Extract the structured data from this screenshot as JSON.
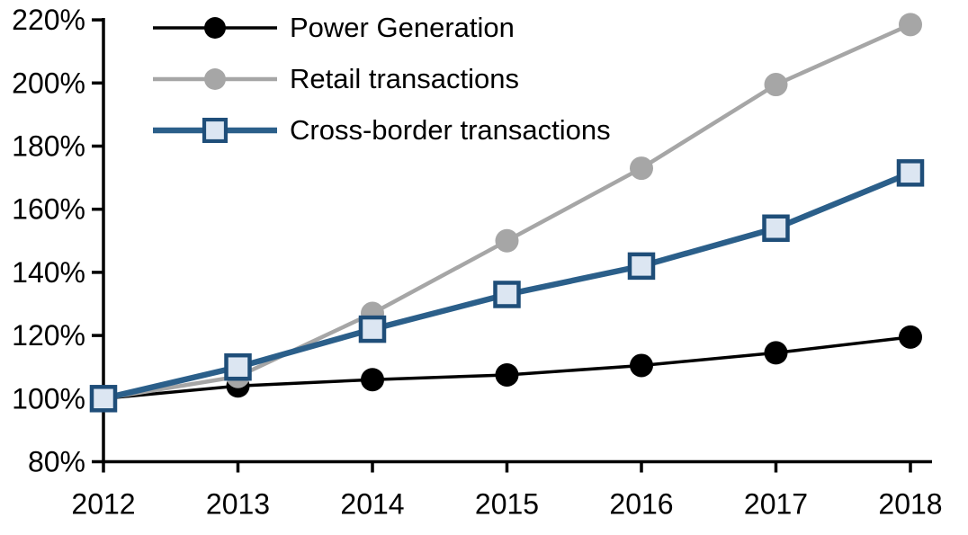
{
  "chart_data": {
    "type": "line",
    "title": "",
    "xlabel": "",
    "ylabel": "",
    "x": [
      2012,
      2013,
      2014,
      2015,
      2016,
      2017,
      2018
    ],
    "xticklabels": [
      "2012",
      "2013",
      "2014",
      "2015",
      "2016",
      "2017",
      "2018"
    ],
    "yticklabels": [
      "80%",
      "100%",
      "120%",
      "140%",
      "160%",
      "180%",
      "200%",
      "220%"
    ],
    "ylim": [
      80,
      220
    ],
    "ytick_step": 20,
    "ytick_format": "percent",
    "grid": false,
    "legend_position": "top-left",
    "series": [
      {
        "name": "Power Generation",
        "color": "#000000",
        "marker": "circle",
        "marker_fill": "#000000",
        "line_width": 3.5,
        "values": [
          100,
          104,
          106,
          107.5,
          110.5,
          114.5,
          119.5
        ]
      },
      {
        "name": "Retail transactions",
        "color": "#a6a6a6",
        "marker": "circle",
        "marker_fill": "#a6a6a6",
        "line_width": 4.5,
        "values": [
          100,
          107,
          127,
          150,
          173,
          199.5,
          218.5
        ]
      },
      {
        "name": "Cross-border transactions",
        "color": "#2b5f8a",
        "marker": "square",
        "marker_fill": "#dce6f2",
        "marker_border": "#1f4e79",
        "line_width": 6.5,
        "values": [
          100,
          110,
          122,
          133,
          142,
          154,
          171.5
        ]
      }
    ]
  }
}
